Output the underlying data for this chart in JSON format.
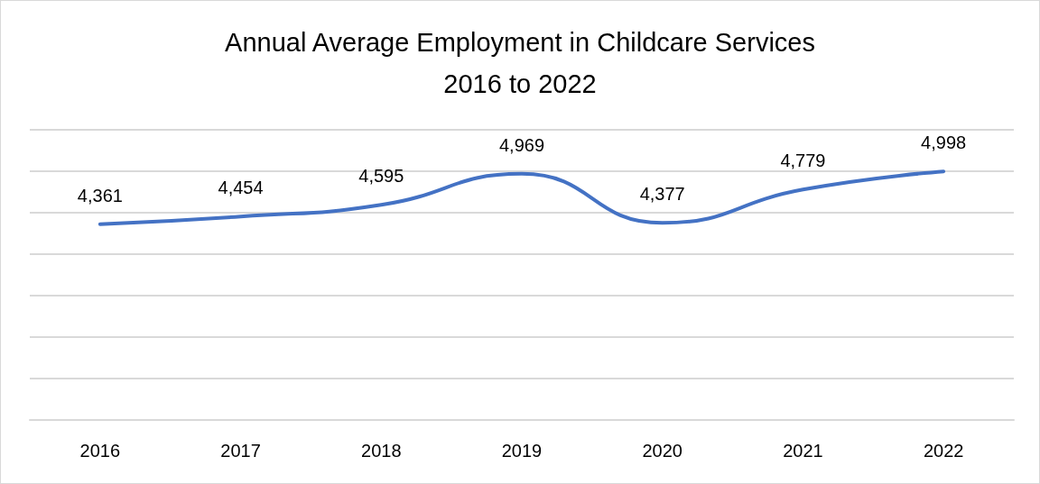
{
  "chart_data": {
    "type": "line",
    "title": "Annual Average Employment in Childcare Services\n2016 to 2022",
    "categories": [
      "2016",
      "2017",
      "2018",
      "2019",
      "2020",
      "2021",
      "2022"
    ],
    "values": [
      4361,
      4454,
      4595,
      4969,
      4377,
      4779,
      4998
    ],
    "value_labels": [
      "4,361",
      "4,454",
      "4,595",
      "4,969",
      "4,377",
      "4,779",
      "4,998"
    ],
    "color": "#4472c4",
    "ylim": [
      2000,
      5500
    ],
    "yticks": [
      {
        "value": 2000,
        "label": null
      },
      {
        "value": 2500,
        "label": null
      },
      {
        "value": 3000,
        "label": null
      },
      {
        "value": 3500,
        "label": null
      },
      {
        "value": 4000,
        "label": null
      },
      {
        "value": 4500,
        "label": null
      },
      {
        "value": 5000,
        "label": null
      },
      {
        "value": 5500,
        "label": null
      }
    ],
    "grid": "y",
    "tick_labels": "x",
    "marker": "none",
    "line_style": "solid"
  }
}
